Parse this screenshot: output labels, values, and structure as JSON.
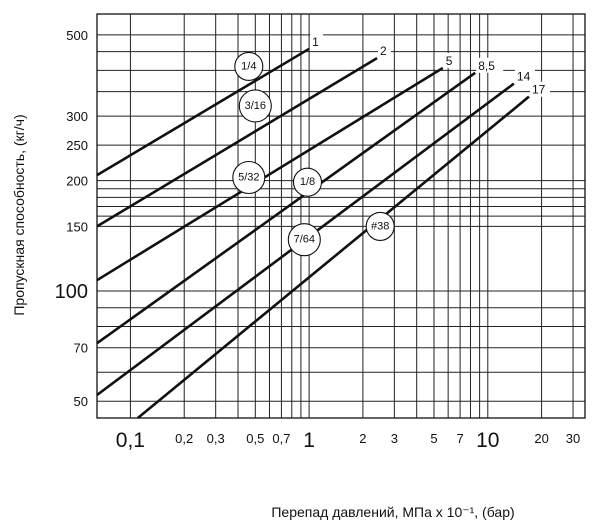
{
  "chart_data": {
    "type": "line",
    "xscale": "log",
    "yscale": "log",
    "xlim": [
      0.065,
      35
    ],
    "ylim": [
      45,
      570
    ],
    "xlabel": "Перепад давлений, МПа x 10⁻¹, (бар)",
    "ylabel": "Пропускная способность, (кг/ч)",
    "grid": true,
    "x_ticks": [
      {
        "value": 0.1,
        "label": "0,1",
        "size": "large"
      },
      {
        "value": 0.2,
        "label": "0,2",
        "size": "small"
      },
      {
        "value": 0.3,
        "label": "0,3",
        "size": "small"
      },
      {
        "value": 0.5,
        "label": "0,5",
        "size": "small"
      },
      {
        "value": 0.7,
        "label": "0,7",
        "size": "small"
      },
      {
        "value": 1,
        "label": "1",
        "size": "large"
      },
      {
        "value": 2,
        "label": "2",
        "size": "small"
      },
      {
        "value": 3,
        "label": "3",
        "size": "small"
      },
      {
        "value": 5,
        "label": "5",
        "size": "small"
      },
      {
        "value": 7,
        "label": "7",
        "size": "small"
      },
      {
        "value": 10,
        "label": "10",
        "size": "large"
      },
      {
        "value": 20,
        "label": "20",
        "size": "small"
      },
      {
        "value": 30,
        "label": "30",
        "size": "small"
      }
    ],
    "y_ticks": [
      {
        "value": 50,
        "label": "50",
        "size": "small"
      },
      {
        "value": 70,
        "label": "70",
        "size": "small"
      },
      {
        "value": 100,
        "label": "100",
        "size": "large"
      },
      {
        "value": 150,
        "label": "150",
        "size": "small"
      },
      {
        "value": 200,
        "label": "200",
        "size": "small"
      },
      {
        "value": 250,
        "label": "250",
        "size": "small"
      },
      {
        "value": 300,
        "label": "300",
        "size": "small"
      },
      {
        "value": 500,
        "label": "500",
        "size": "small"
      }
    ],
    "x_grid": [
      0.1,
      0.2,
      0.3,
      0.4,
      0.5,
      0.6,
      0.7,
      0.8,
      0.9,
      1,
      2,
      3,
      4,
      5,
      6,
      7,
      8,
      9,
      10,
      20,
      30
    ],
    "y_grid": [
      50,
      60,
      70,
      80,
      90,
      100,
      150,
      160,
      170,
      180,
      190,
      200,
      250,
      300,
      350,
      400,
      450,
      500
    ],
    "series": [
      {
        "label": "1",
        "name": "1/4",
        "x": [
          0.065,
          1.0
        ],
        "y": [
          207,
          458
        ]
      },
      {
        "label": "2",
        "name": "3/16",
        "x": [
          0.065,
          2.4
        ],
        "y": [
          150,
          432
        ]
      },
      {
        "label": "5",
        "name": "5/32",
        "x": [
          0.065,
          5.6
        ],
        "y": [
          107,
          406
        ]
      },
      {
        "label": "8,5",
        "name": "1/8",
        "x": [
          0.065,
          8.5
        ],
        "y": [
          72,
          394
        ]
      },
      {
        "label": "14",
        "name": "7/64",
        "x": [
          0.065,
          14
        ],
        "y": [
          52,
          368
        ]
      },
      {
        "label": "17",
        "name": "#38",
        "x": [
          0.11,
          17
        ],
        "y": [
          45,
          339
        ]
      }
    ],
    "bubbles": [
      {
        "text": "1/4",
        "x": 0.46,
        "y": 410
      },
      {
        "text": "3/16",
        "x": 0.5,
        "y": 320
      },
      {
        "text": "5/32",
        "x": 0.46,
        "y": 204
      },
      {
        "text": "1/8",
        "x": 0.98,
        "y": 198
      },
      {
        "text": "7/64",
        "x": 0.94,
        "y": 138
      },
      {
        "text": "#38",
        "x": 2.5,
        "y": 150
      }
    ]
  }
}
